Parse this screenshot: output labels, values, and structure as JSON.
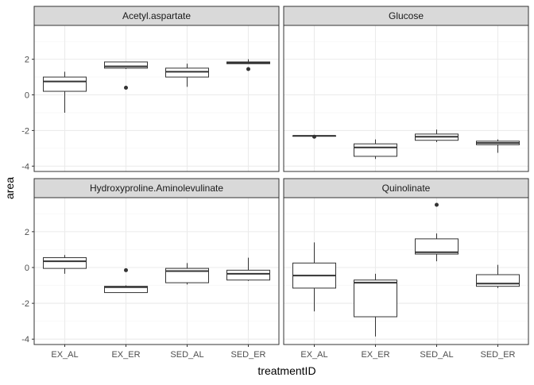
{
  "chart_data": {
    "type": "boxplot",
    "layout": "facet-grid 2x2",
    "xlabel": "treatmentID",
    "ylabel": "area",
    "categories": [
      "EX_AL",
      "EX_ER",
      "SED_AL",
      "SED_ER"
    ],
    "ylim": [
      -4.3,
      3.9
    ],
    "yticks": [
      -4,
      -2,
      0,
      2
    ],
    "ytick_labels": [
      "-4",
      "-2",
      "0",
      "2"
    ],
    "grid": true,
    "facets": [
      {
        "title": "Acetyl.aspartate",
        "boxes": [
          {
            "category": "EX_AL",
            "whisker_low": -1.0,
            "q1": 0.2,
            "median": 0.75,
            "q3": 1.0,
            "whisker_high": 1.3,
            "outliers": []
          },
          {
            "category": "EX_ER",
            "whisker_low": 1.45,
            "q1": 1.5,
            "median": 1.6,
            "q3": 1.85,
            "whisker_high": 1.85,
            "outliers": [
              0.4
            ]
          },
          {
            "category": "SED_AL",
            "whisker_low": 0.45,
            "q1": 1.0,
            "median": 1.3,
            "q3": 1.5,
            "whisker_high": 1.75,
            "outliers": []
          },
          {
            "category": "SED_ER",
            "whisker_low": 1.75,
            "q1": 1.75,
            "median": 1.8,
            "q3": 1.85,
            "whisker_high": 2.0,
            "outliers": [
              1.45
            ]
          }
        ]
      },
      {
        "title": "Glucose",
        "boxes": [
          {
            "category": "EX_AL",
            "whisker_low": -2.3,
            "q1": -2.3,
            "median": -2.3,
            "q3": -2.3,
            "whisker_high": -2.3,
            "outliers": [
              -2.35
            ]
          },
          {
            "category": "EX_ER",
            "whisker_low": -3.6,
            "q1": -3.45,
            "median": -2.95,
            "q3": -2.75,
            "whisker_high": -2.5,
            "outliers": []
          },
          {
            "category": "SED_AL",
            "whisker_low": -2.65,
            "q1": -2.55,
            "median": -2.35,
            "q3": -2.2,
            "whisker_high": -1.95,
            "outliers": []
          },
          {
            "category": "SED_ER",
            "whisker_low": -3.25,
            "q1": -2.8,
            "median": -2.7,
            "q3": -2.6,
            "whisker_high": -2.5,
            "outliers": []
          }
        ]
      },
      {
        "title": "Hydroxyproline.Aminolevulinate",
        "boxes": [
          {
            "category": "EX_AL",
            "whisker_low": -0.35,
            "q1": -0.05,
            "median": 0.35,
            "q3": 0.55,
            "whisker_high": 0.7,
            "outliers": []
          },
          {
            "category": "EX_ER",
            "whisker_low": -1.4,
            "q1": -1.4,
            "median": -1.1,
            "q3": -1.05,
            "whisker_high": -1.0,
            "outliers": [
              -0.15
            ]
          },
          {
            "category": "SED_AL",
            "whisker_low": -0.95,
            "q1": -0.85,
            "median": -0.2,
            "q3": -0.05,
            "whisker_high": 0.25,
            "outliers": []
          },
          {
            "category": "SED_ER",
            "whisker_low": -0.75,
            "q1": -0.7,
            "median": -0.35,
            "q3": -0.15,
            "whisker_high": 0.55,
            "outliers": []
          }
        ]
      },
      {
        "title": "Quinolinate",
        "boxes": [
          {
            "category": "EX_AL",
            "whisker_low": -2.45,
            "q1": -1.15,
            "median": -0.45,
            "q3": 0.25,
            "whisker_high": 1.4,
            "outliers": []
          },
          {
            "category": "EX_ER",
            "whisker_low": -3.85,
            "q1": -2.75,
            "median": -0.85,
            "q3": -0.7,
            "whisker_high": -0.35,
            "outliers": []
          },
          {
            "category": "SED_AL",
            "whisker_low": 0.35,
            "q1": 0.75,
            "median": 0.85,
            "q3": 1.6,
            "whisker_high": 1.9,
            "outliers": [
              3.5
            ]
          },
          {
            "category": "SED_ER",
            "whisker_low": -1.15,
            "q1": -1.05,
            "median": -0.9,
            "q3": -0.4,
            "whisker_high": 0.15,
            "outliers": []
          }
        ]
      }
    ]
  },
  "colors": {
    "panel_background": "#ffffff",
    "strip_background": "#d9d9d9",
    "grid_major": "#ebebeb",
    "grid_minor": "#f5f5f5",
    "border": "#333333",
    "box_stroke": "#333333",
    "text_axis": "#4d4d4d",
    "text_title": "#1a1a1a"
  }
}
